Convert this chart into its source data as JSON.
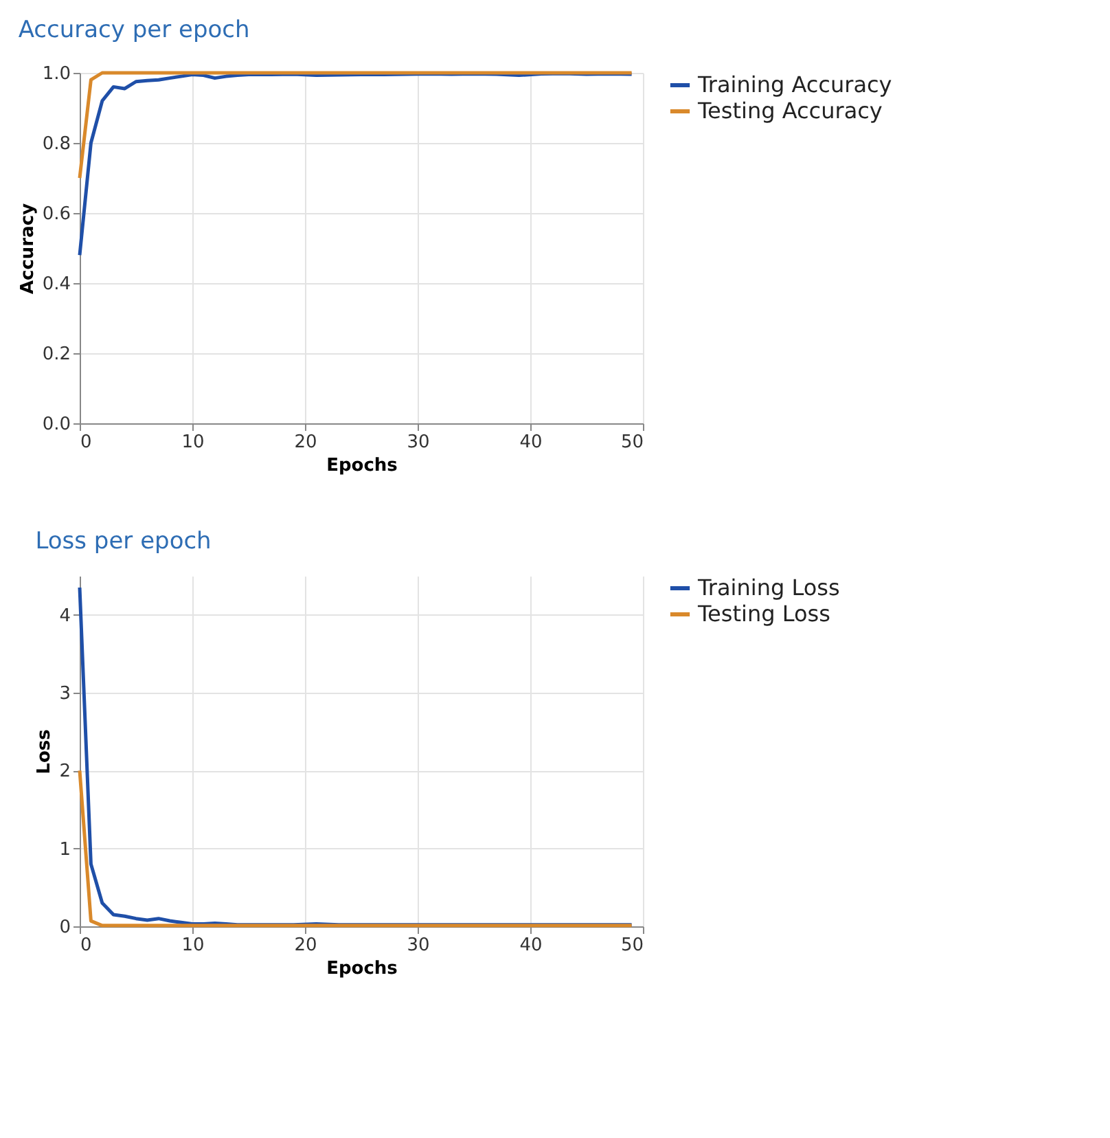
{
  "chart_data": [
    {
      "type": "line",
      "title": "Accuracy per epoch",
      "xlabel": "Epochs",
      "ylabel": "Accuracy",
      "x": [
        0,
        1,
        2,
        3,
        4,
        5,
        6,
        7,
        8,
        9,
        10,
        11,
        12,
        13,
        14,
        15,
        17,
        19,
        21,
        23,
        25,
        27,
        29,
        31,
        33,
        35,
        37,
        39,
        41,
        43,
        45,
        47,
        49
      ],
      "xlim": [
        0,
        50
      ],
      "xticks": [
        0,
        10,
        20,
        30,
        40,
        50
      ],
      "ylim": [
        0,
        1
      ],
      "yticks": [
        {
          "value": 0,
          "label": "0.0"
        },
        0.2,
        0.4,
        0.6,
        0.8,
        {
          "value": 1,
          "label": "1.0"
        }
      ],
      "grid": true,
      "legend": "top right",
      "series": [
        {
          "name": "Training Accuracy",
          "color": "#1f4fa8",
          "values": [
            0.48,
            0.8,
            0.92,
            0.96,
            0.955,
            0.975,
            0.978,
            0.98,
            0.985,
            0.99,
            0.995,
            0.993,
            0.985,
            0.99,
            0.993,
            0.995,
            0.995,
            0.996,
            0.993,
            0.994,
            0.995,
            0.995,
            0.996,
            0.997,
            0.996,
            0.997,
            0.996,
            0.993,
            0.997,
            0.998,
            0.996,
            0.997,
            0.996
          ]
        },
        {
          "name": "Testing Accuracy",
          "color": "#d9892b",
          "values": [
            0.7,
            0.98,
            1,
            1,
            1,
            1,
            1,
            1,
            1,
            1,
            1,
            1,
            1,
            1,
            1,
            1,
            1,
            1,
            1,
            1,
            1,
            1,
            1,
            1,
            1,
            1,
            1,
            1,
            1,
            1,
            1,
            1,
            1
          ]
        }
      ]
    },
    {
      "type": "line",
      "title": "Loss per epoch",
      "xlabel": "Epochs",
      "ylabel": "Loss",
      "x": [
        0,
        1,
        2,
        3,
        4,
        5,
        6,
        7,
        8,
        9,
        10,
        11,
        12,
        13,
        14,
        15,
        17,
        19,
        21,
        23,
        25,
        27,
        29,
        31,
        33,
        35,
        37,
        39,
        41,
        43,
        45,
        47,
        49
      ],
      "xlim": [
        0,
        50
      ],
      "xticks": [
        0,
        10,
        20,
        30,
        40,
        50
      ],
      "ylim": [
        0,
        4.5
      ],
      "yticks": [
        0,
        1,
        2,
        3,
        4
      ],
      "grid": true,
      "legend": "top right",
      "series": [
        {
          "name": "Training Loss",
          "color": "#1f4fa8",
          "values": [
            4.35,
            0.8,
            0.3,
            0.15,
            0.13,
            0.1,
            0.08,
            0.1,
            0.07,
            0.05,
            0.03,
            0.03,
            0.04,
            0.03,
            0.02,
            0.02,
            0.02,
            0.02,
            0.03,
            0.02,
            0.02,
            0.02,
            0.02,
            0.02,
            0.02,
            0.02,
            0.02,
            0.02,
            0.02,
            0.02,
            0.02,
            0.02,
            0.02
          ]
        },
        {
          "name": "Testing Loss",
          "color": "#d9892b",
          "values": [
            2.0,
            0.07,
            0.01,
            0.01,
            0.01,
            0.01,
            0.01,
            0.01,
            0.01,
            0.01,
            0.01,
            0.01,
            0.01,
            0.01,
            0.01,
            0.01,
            0.01,
            0.01,
            0.01,
            0.01,
            0.01,
            0.01,
            0.01,
            0.01,
            0.01,
            0.01,
            0.01,
            0.01,
            0.01,
            0.01,
            0.01,
            0.01,
            0.01
          ]
        }
      ]
    }
  ]
}
